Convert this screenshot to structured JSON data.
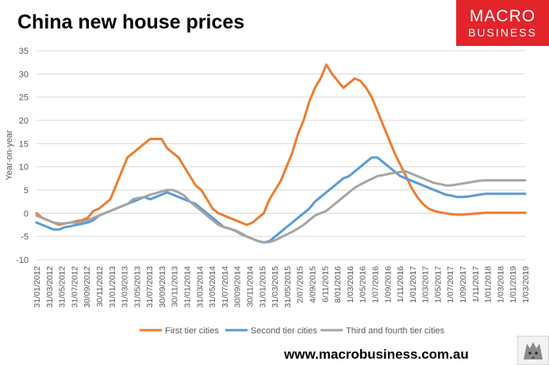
{
  "header": {
    "title": "China new house prices"
  },
  "logo": {
    "line1": "MACRO",
    "line2": "BUSINESS"
  },
  "footer": {
    "url": "www.macrobusiness.com.au"
  },
  "colors": {
    "first_tier": "#ED7D31",
    "second_tier": "#5B9BD5",
    "third_fourth_tier": "#A5A5A5",
    "logo_red": "#E3242B",
    "grid": "#D9D9D9"
  },
  "chart_data": {
    "type": "line",
    "title": "China new house prices",
    "ylabel": "Year-on-year",
    "xlabel": "",
    "ylim": [
      -10,
      35
    ],
    "yticks": [
      -10,
      -5,
      0,
      5,
      10,
      15,
      20,
      25,
      30,
      35
    ],
    "grid": true,
    "legend_position": "bottom",
    "x_tick_labels": [
      "31/01/2012",
      "31/03/2012",
      "31/05/2012",
      "31/07/2012",
      "30/09/2012",
      "30/11/2012",
      "31/01/2013",
      "31/03/2013",
      "31/05/2013",
      "31/07/2013",
      "30/09/2013",
      "30/11/2013",
      "31/01/2014",
      "31/03/2014",
      "31/05/2014",
      "31/07/2014",
      "30/09/2014",
      "30/11/2014",
      "31/01/2015",
      "31/03/2015",
      "31/05/2015",
      "2/07/2015",
      "4/09/2015",
      "6/11/2015",
      "8/01/2016",
      "1/03/2016",
      "1/05/2016",
      "1/07/2016",
      "1/09/2016",
      "1/11/2016",
      "1/01/2017",
      "1/03/2017",
      "1/05/2017",
      "1/07/2017",
      "1/09/2017",
      "1/11/2017",
      "1/01/2018",
      "1/03/2018",
      "1/01/2019",
      "1/03/2019"
    ],
    "x_months": [
      "2012-01",
      "2012-02",
      "2012-03",
      "2012-04",
      "2012-05",
      "2012-06",
      "2012-07",
      "2012-08",
      "2012-09",
      "2012-10",
      "2012-11",
      "2012-12",
      "2013-01",
      "2013-02",
      "2013-03",
      "2013-04",
      "2013-05",
      "2013-06",
      "2013-07",
      "2013-08",
      "2013-09",
      "2013-10",
      "2013-11",
      "2013-12",
      "2014-01",
      "2014-02",
      "2014-03",
      "2014-04",
      "2014-05",
      "2014-06",
      "2014-07",
      "2014-08",
      "2014-09",
      "2014-10",
      "2014-11",
      "2014-12",
      "2015-01",
      "2015-02",
      "2015-03",
      "2015-04",
      "2015-05",
      "2015-06",
      "2015-07",
      "2015-08",
      "2015-09",
      "2015-10",
      "2015-11",
      "2015-12",
      "2016-01",
      "2016-02",
      "2016-03",
      "2016-04",
      "2016-05",
      "2016-06",
      "2016-07",
      "2016-08",
      "2016-09",
      "2016-10",
      "2016-11",
      "2016-12",
      "2017-01",
      "2017-02",
      "2017-03",
      "2017-04",
      "2017-05",
      "2017-06",
      "2017-07",
      "2017-08",
      "2017-09",
      "2017-10",
      "2017-11",
      "2017-12",
      "2018-01",
      "2018-02",
      "2018-03",
      "2018-04",
      "2018-05",
      "2018-06",
      "2018-07",
      "2018-08",
      "2018-09",
      "2018-10",
      "2018-11",
      "2018-12",
      "2019-01",
      "2019-02",
      "2019-03"
    ],
    "series": [
      {
        "name": "First tier cities",
        "color": "#ED7D31",
        "values": [
          0,
          -1,
          -1.5,
          -2,
          -2.5,
          -2.2,
          -2,
          -1.7,
          -1.5,
          -1,
          0.5,
          1,
          2,
          3,
          6,
          9,
          12,
          13,
          14,
          15,
          16,
          16,
          16,
          14,
          13,
          12,
          10,
          8,
          6,
          5,
          3,
          1,
          0,
          -0.5,
          -1,
          -1.5,
          -2,
          -2.5,
          -2,
          -1,
          0,
          3,
          5,
          7,
          10,
          13,
          17,
          20,
          24,
          27,
          29,
          32,
          30,
          28.5,
          27,
          28,
          29,
          28.5,
          27,
          25,
          22,
          19,
          16,
          13,
          10.5,
          8,
          5.5,
          3.5,
          2,
          1,
          0.5,
          0.2,
          0,
          -0.2,
          -0.3,
          -0.3,
          -0.2,
          -0.1,
          0,
          0.1,
          0.1,
          0.1,
          0.1,
          0.1,
          0.1,
          0.1,
          0.1
        ]
      },
      {
        "name": "Second tier cities",
        "color": "#5B9BD5",
        "values": [
          -2,
          -2.5,
          -3,
          -3.5,
          -3.5,
          -3,
          -2.8,
          -2.5,
          -2.3,
          -2,
          -1.5,
          -0.5,
          0,
          0.5,
          1,
          1.5,
          2,
          2.5,
          3,
          3.5,
          3,
          3.5,
          4,
          4.5,
          4,
          3.5,
          3,
          2.5,
          2,
          1,
          0,
          -1,
          -2,
          -3,
          -3.3,
          -3.8,
          -4.5,
          -5,
          -5.5,
          -6,
          -6.3,
          -6,
          -5,
          -4,
          -3,
          -2,
          -1,
          0,
          1,
          2.5,
          3.5,
          4.5,
          5.5,
          6.5,
          7.5,
          8,
          9,
          10,
          11,
          12,
          12,
          11,
          10,
          9,
          8,
          7.5,
          7,
          6.5,
          6,
          5.5,
          5,
          4.5,
          4,
          3.8,
          3.5,
          3.5,
          3.6,
          3.8,
          4,
          4.2,
          4.2,
          4.2,
          4.2,
          4.2,
          4.2,
          4.2,
          4.2
        ]
      },
      {
        "name": "Third and fourth tier cities",
        "color": "#A5A5A5",
        "values": [
          -0.5,
          -1,
          -1.5,
          -2,
          -2.2,
          -2.2,
          -2,
          -2,
          -1.8,
          -1.5,
          -1,
          -0.5,
          0,
          0.5,
          1,
          1.5,
          2,
          3,
          3.3,
          3.5,
          4,
          4.3,
          4.7,
          5,
          5,
          4.5,
          3.8,
          2.5,
          1.5,
          0.5,
          -0.5,
          -1.5,
          -2.5,
          -3,
          -3.3,
          -3.7,
          -4.3,
          -5,
          -5.5,
          -6,
          -6.3,
          -6.2,
          -5.8,
          -5.2,
          -4.6,
          -4,
          -3.3,
          -2.5,
          -1.5,
          -0.5,
          0,
          0.5,
          1.5,
          2.5,
          3.5,
          4.5,
          5.5,
          6.2,
          6.8,
          7.4,
          8,
          8.2,
          8.5,
          8.7,
          8.9,
          9,
          8.5,
          8,
          7.5,
          7,
          6.5,
          6.3,
          6,
          6,
          6.2,
          6.4,
          6.6,
          6.8,
          7,
          7.1,
          7.1,
          7.1,
          7.1,
          7.1,
          7.1,
          7.1,
          7.1
        ]
      }
    ]
  }
}
